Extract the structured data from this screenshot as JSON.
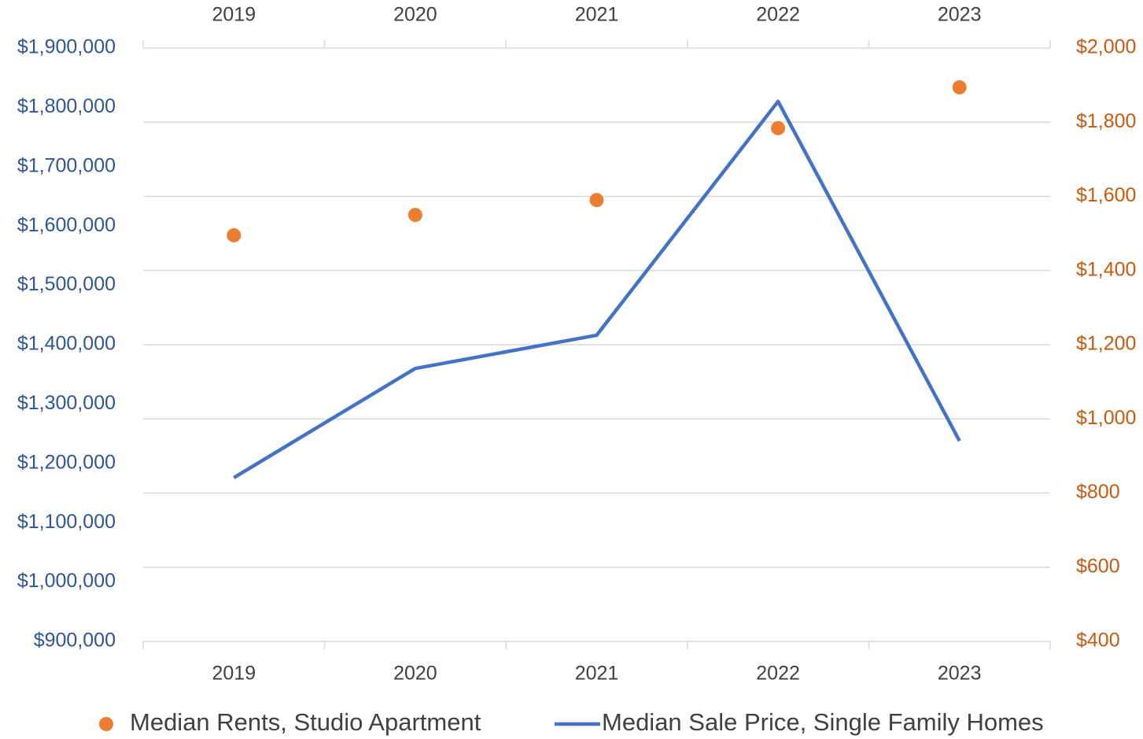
{
  "chart_data": {
    "type": "line",
    "categories": [
      "2019",
      "2020",
      "2021",
      "2022",
      "2023"
    ],
    "series": [
      {
        "name": "Median Rents, Studio Apartment",
        "type": "scatter",
        "axis": "y2",
        "color": "#ed7d31",
        "values": [
          1495,
          1550,
          1590,
          1784,
          1894
        ]
      },
      {
        "name": "Median Sale Price, Single Family Homes",
        "type": "line",
        "axis": "y",
        "color": "#4472c4",
        "values": [
          1176000,
          1360000,
          1416000,
          1810000,
          1238000
        ]
      }
    ],
    "ylim": [
      900000,
      1900000
    ],
    "yticks": [
      {
        "value": 900000,
        "label": "$900,000"
      },
      {
        "value": 1000000,
        "label": "$1,000,000"
      },
      {
        "value": 1100000,
        "label": "$1,100,000"
      },
      {
        "value": 1200000,
        "label": "$1,200,000"
      },
      {
        "value": 1300000,
        "label": "$1,300,000"
      },
      {
        "value": 1400000,
        "label": "$1,400,000"
      },
      {
        "value": 1500000,
        "label": "$1,500,000"
      },
      {
        "value": 1600000,
        "label": "$1,600,000"
      },
      {
        "value": 1700000,
        "label": "$1,700,000"
      },
      {
        "value": 1800000,
        "label": "$1,800,000"
      },
      {
        "value": 1900000,
        "label": "$1,900,000"
      }
    ],
    "y2lim": [
      400,
      2000
    ],
    "y2ticks": [
      {
        "value": 400,
        "label": "$400"
      },
      {
        "value": 600,
        "label": "$600"
      },
      {
        "value": 800,
        "label": "$800"
      },
      {
        "value": 1000,
        "label": "$1,000"
      },
      {
        "value": 1200,
        "label": "$1,200"
      },
      {
        "value": 1400,
        "label": "$1,400"
      },
      {
        "value": 1600,
        "label": "$1,600"
      },
      {
        "value": 1800,
        "label": "$1,800"
      },
      {
        "value": 2000,
        "label": "$2,000"
      }
    ],
    "grid": true,
    "legend": "bottom"
  }
}
